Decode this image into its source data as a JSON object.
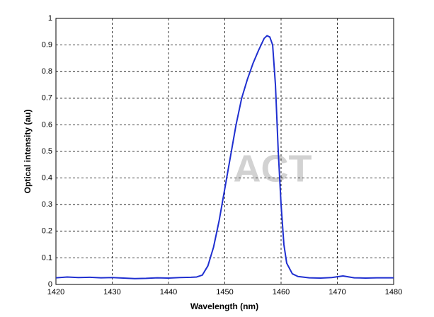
{
  "chart_data": {
    "type": "line",
    "x_label": "Wavelength (nm)",
    "y_label": "Optical intensity (au)",
    "watermark": "ACT",
    "x": [
      1420,
      1422,
      1424,
      1426,
      1428,
      1430,
      1432,
      1434,
      1436,
      1438,
      1440,
      1442,
      1444,
      1445,
      1446,
      1447,
      1448,
      1449,
      1450,
      1451,
      1452,
      1453,
      1454,
      1455,
      1456,
      1457,
      1457.5,
      1458,
      1458.5,
      1459,
      1459.5,
      1460,
      1460.5,
      1461,
      1462,
      1463,
      1465,
      1467,
      1469,
      1471,
      1473,
      1475,
      1477,
      1480
    ],
    "values": [
      0.025,
      0.028,
      0.026,
      0.027,
      0.025,
      0.026,
      0.024,
      0.022,
      0.023,
      0.025,
      0.024,
      0.026,
      0.027,
      0.028,
      0.035,
      0.07,
      0.14,
      0.24,
      0.36,
      0.48,
      0.6,
      0.7,
      0.77,
      0.83,
      0.88,
      0.925,
      0.935,
      0.93,
      0.9,
      0.75,
      0.5,
      0.3,
      0.15,
      0.08,
      0.04,
      0.03,
      0.025,
      0.024,
      0.026,
      0.032,
      0.025,
      0.024,
      0.025,
      0.025
    ],
    "color": "#1f2fd0",
    "xlim": [
      1420,
      1480
    ],
    "xticks": [
      1420,
      1430,
      1440,
      1450,
      1460,
      1470,
      1480
    ],
    "ylim": [
      0,
      1
    ],
    "yticks": [
      0,
      0.1,
      0.2,
      0.3,
      0.4,
      0.5,
      0.6,
      0.7,
      0.8,
      0.9,
      1
    ],
    "grid": true
  }
}
